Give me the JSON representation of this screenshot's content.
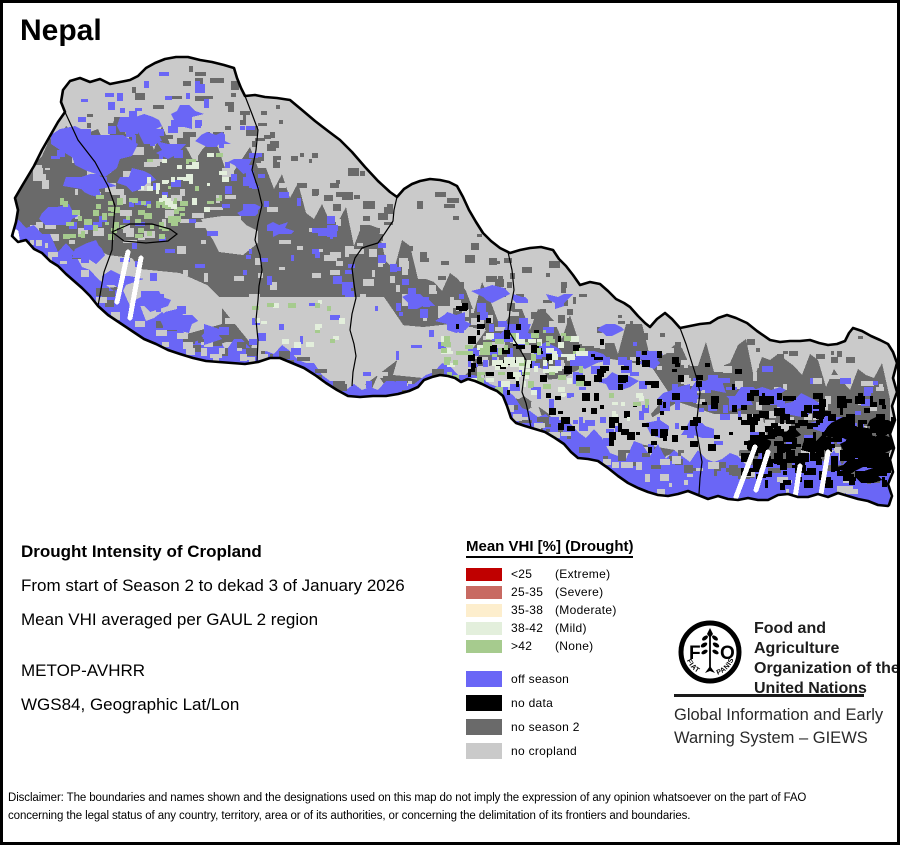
{
  "title": "Nepal",
  "map": {
    "label": "Drought intensity of cropland raster map of Nepal",
    "border_color": "#000000",
    "river_color": "#ffffff",
    "background": "#ffffff"
  },
  "info": {
    "heading": "Drought Intensity of Cropland",
    "period_line": "From start of Season 2 to dekad 3 of January 2026",
    "method_line": "Mean VHI averaged per GAUL 2 region",
    "sensor": "METOP-AVHRR",
    "projection": "WGS84, Geographic Lat/Lon"
  },
  "legend": {
    "title": "Mean VHI [%] (Drought)",
    "vhi_classes": [
      {
        "range": "<25",
        "label": "(Extreme)",
        "color": "#c00000"
      },
      {
        "range": "25-35",
        "label": "(Severe)",
        "color": "#c86a62"
      },
      {
        "range": "35-38",
        "label": "(Moderate)",
        "color": "#fdeecd"
      },
      {
        "range": "38-42",
        "label": "(Mild)",
        "color": "#e3efdc"
      },
      {
        "range": ">42",
        "label": "(None)",
        "color": "#a6cb8e"
      }
    ],
    "season_classes": [
      {
        "label": "off season",
        "color": "#6a66f6"
      },
      {
        "label": "no data",
        "color": "#000000"
      },
      {
        "label": "no season 2",
        "color": "#6a6a6a"
      },
      {
        "label": "no cropland",
        "color": "#cacaca"
      }
    ]
  },
  "branding": {
    "logo_letter_f": "F",
    "logo_letter_o": "O",
    "logo_motto_left": "FIAT",
    "logo_motto_right": "PANIS",
    "org_name_lines": [
      "Food and Agriculture",
      "Organization of the",
      "United Nations"
    ],
    "giews_lines": [
      "Global Information and Early",
      "Warning System – GIEWS"
    ]
  },
  "disclaimer_lines": [
    "Disclaimer: The boundaries and names shown and the designations used on this map do not imply the expression of any opinion whatsoever on the part of FAO",
    "concerning the legal status of any country, territory, area or of its authorities, or concerning the delimitation of its frontiers and boundaries."
  ]
}
